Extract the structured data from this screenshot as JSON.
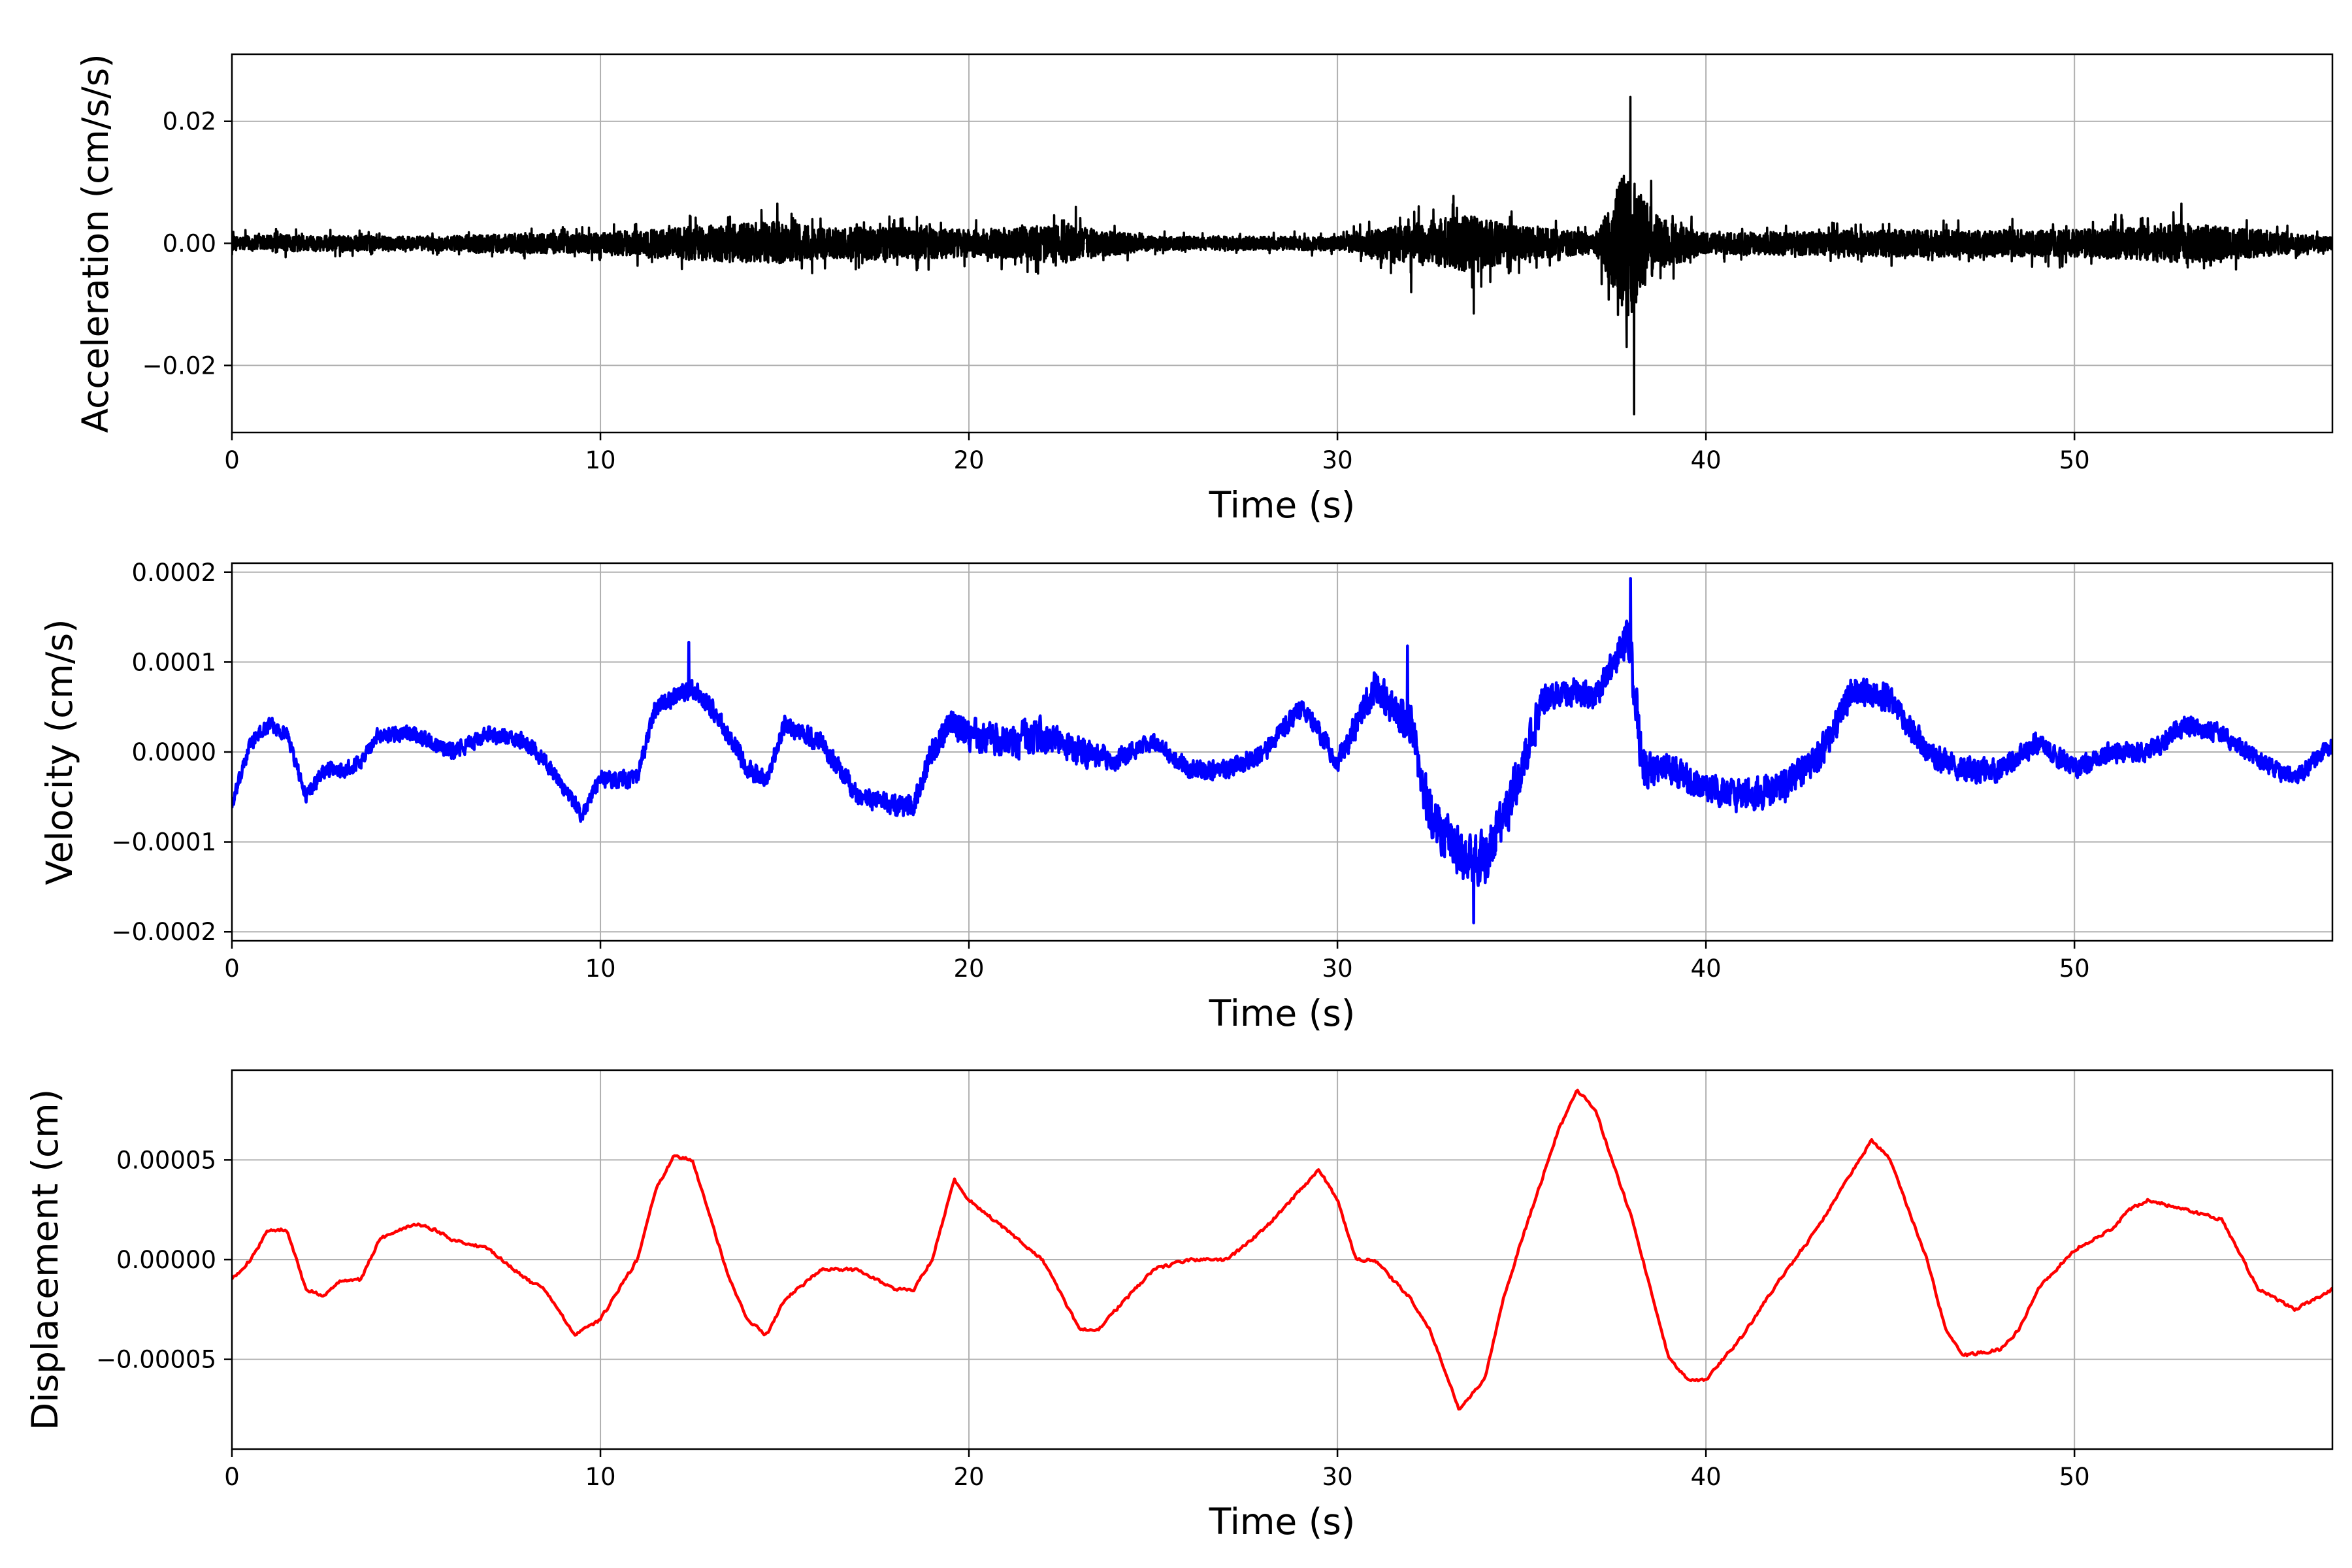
{
  "chart_data": [
    {
      "type": "line",
      "xlabel": "Time (s)",
      "ylabel": "Acceleration (cm/s/s)",
      "xlim": [
        0,
        57
      ],
      "ylim": [
        -0.031,
        0.031
      ],
      "xticks": [
        0,
        10,
        20,
        30,
        40,
        50
      ],
      "xtick_labels": [
        "0",
        "10",
        "20",
        "30",
        "40",
        "50"
      ],
      "yticks": [
        -0.02,
        0.0,
        0.02
      ],
      "ytick_labels": [
        "−0.02",
        "0.00",
        "0.02"
      ],
      "grid": true,
      "color": "#000000",
      "series": [
        {
          "envelope": [
            [
              0,
              0.002
            ],
            [
              1,
              0.0025
            ],
            [
              5,
              0.002
            ],
            [
              8,
              0.003
            ],
            [
              10,
              0.003
            ],
            [
              11,
              0.004
            ],
            [
              12.5,
              0.005
            ],
            [
              14.8,
              0.0065
            ],
            [
              16,
              0.0045
            ],
            [
              18,
              0.005
            ],
            [
              20,
              0.004
            ],
            [
              22.5,
              0.0055
            ],
            [
              25,
              0.002
            ],
            [
              28,
              0.002
            ],
            [
              30,
              0.002
            ],
            [
              32,
              0.006
            ],
            [
              33.5,
              0.0085
            ],
            [
              35,
              0.005
            ],
            [
              37,
              0.003
            ],
            [
              37.9,
              0.024
            ],
            [
              38.2,
              0.015
            ],
            [
              38.7,
              0.008
            ],
            [
              40,
              0.003
            ],
            [
              45,
              0.004
            ],
            [
              50,
              0.004
            ],
            [
              53,
              0.006
            ],
            [
              57,
              0.002
            ]
          ],
          "spikes": [
            [
              37.95,
              0.024
            ],
            [
              38.05,
              -0.028
            ],
            [
              37.85,
              -0.017
            ],
            [
              33.7,
              -0.0115
            ],
            [
              32,
              -0.008
            ],
            [
              14.8,
              0.0065
            ],
            [
              22.9,
              0.006
            ],
            [
              52.9,
              0.0065
            ]
          ]
        }
      ]
    },
    {
      "type": "line",
      "xlabel": "Time (s)",
      "ylabel": "Velocity (cm/s)",
      "xlim": [
        0,
        57
      ],
      "ylim": [
        -0.00021,
        0.00021
      ],
      "xticks": [
        0,
        10,
        20,
        30,
        40,
        50
      ],
      "xtick_labels": [
        "0",
        "10",
        "20",
        "30",
        "40",
        "50"
      ],
      "yticks": [
        -0.0002,
        -0.0001,
        0.0,
        0.0001,
        0.0002
      ],
      "ytick_labels": [
        "−0.0002",
        "−0.0001",
        "0.0000",
        "0.0001",
        "0.0002"
      ],
      "grid": true,
      "color": "#0000ff",
      "series": [
        {
          "x": [
            0,
            0.5,
            1,
            1.5,
            2,
            2.5,
            3,
            3.5,
            4,
            5,
            6,
            7,
            8,
            8.5,
            9.5,
            10,
            11,
            11.5,
            12.5,
            13,
            14,
            14.5,
            15,
            16,
            17,
            18,
            18.5,
            19,
            19.5,
            20,
            21,
            22,
            23,
            24,
            25,
            26,
            27,
            28,
            29,
            30,
            31,
            32,
            32.5,
            33.5,
            34,
            35,
            35.5,
            36,
            37,
            37.9,
            38.3,
            39,
            40,
            41,
            42,
            43,
            44,
            45,
            46,
            47,
            48,
            49,
            50,
            51,
            52,
            53,
            54,
            55,
            56,
            57
          ],
          "y": [
            -6e-05,
            1e-05,
            3e-05,
            2e-05,
            -5e-05,
            -2e-05,
            -2e-05,
            -1e-05,
            2e-05,
            2e-05,
            0,
            2e-05,
            1e-05,
            -1e-05,
            -7e-05,
            -3e-05,
            -3e-05,
            5e-05,
            7e-05,
            5e-05,
            -2e-05,
            -3e-05,
            3e-05,
            1e-05,
            -5e-05,
            -6e-05,
            -6e-05,
            0,
            3e-05,
            2e-05,
            1e-05,
            2e-05,
            0,
            -1e-05,
            1e-05,
            -2e-05,
            -2e-05,
            0,
            5e-05,
            -1e-05,
            7e-05,
            3e-05,
            -7e-05,
            -0.00012,
            -0.00012,
            -2e-05,
            5e-05,
            7e-05,
            6e-05,
            0.00013,
            -2e-05,
            -2e-05,
            -4e-05,
            -5e-05,
            -4e-05,
            -1e-05,
            7e-05,
            6e-05,
            0,
            -2e-05,
            -2e-05,
            1e-05,
            -2e-05,
            0,
            0,
            3e-05,
            2e-05,
            -1e-05,
            -3e-05,
            1e-05
          ],
          "noise": [
            [
              0,
              1e-05
            ],
            [
              10,
              1.2e-05
            ],
            [
              18,
              1.5e-05
            ],
            [
              20,
              2.2e-05
            ],
            [
              22,
              2.5e-05
            ],
            [
              25,
              1.2e-05
            ],
            [
              30,
              1.5e-05
            ],
            [
              32,
              3e-05
            ],
            [
              34,
              4e-05
            ],
            [
              36,
              2e-05
            ],
            [
              37.7,
              2e-05
            ],
            [
              38,
              4e-05
            ],
            [
              38.5,
              2.5e-05
            ],
            [
              40,
              2e-05
            ],
            [
              41,
              2.5e-05
            ],
            [
              45,
              2e-05
            ],
            [
              50,
              1.5e-05
            ],
            [
              57,
              1.2e-05
            ]
          ],
          "spikes": [
            [
              37.95,
              0.000193
            ],
            [
              33.7,
              -0.00019
            ],
            [
              12.4,
              0.000122
            ],
            [
              31.9,
              0.000118
            ]
          ]
        }
      ]
    },
    {
      "type": "line",
      "xlabel": "Time (s)",
      "ylabel": "Displacement (cm)",
      "xlim": [
        0,
        57
      ],
      "ylim": [
        -9.5e-05,
        9.5e-05
      ],
      "xticks": [
        0,
        10,
        20,
        30,
        40,
        50
      ],
      "xtick_labels": [
        "0",
        "10",
        "20",
        "30",
        "40",
        "50"
      ],
      "yticks": [
        -5e-05,
        0,
        5e-05
      ],
      "ytick_labels": [
        "−0.00005",
        "0.00000",
        "0.00005"
      ],
      "grid": true,
      "color": "#ff0000",
      "series": [
        {
          "x": [
            0,
            0.5,
            1,
            1.5,
            2,
            2.5,
            3,
            3.5,
            4,
            4.5,
            5,
            5.5,
            6,
            7,
            8,
            8.5,
            9.3,
            10,
            11,
            11.5,
            12,
            12.5,
            13,
            13.5,
            14,
            14.5,
            15,
            16,
            16.5,
            17,
            17.5,
            18,
            18.5,
            19,
            19.6,
            20,
            21,
            22,
            23,
            23.5,
            24,
            25,
            26,
            27,
            28,
            29,
            29.5,
            30,
            30.5,
            31,
            32,
            32.5,
            33.3,
            34,
            34.5,
            35,
            36,
            36.5,
            37,
            38,
            39,
            39.5,
            40,
            41,
            42,
            43,
            44,
            44.5,
            45,
            46,
            46.5,
            47,
            48,
            48.5,
            49,
            50,
            51,
            51.5,
            52,
            53,
            54,
            55,
            56,
            57
          ],
          "y": [
            -1e-05,
            0,
            1.5e-05,
            1.5e-05,
            -1.5e-05,
            -1.8e-05,
            -1e-05,
            -1e-05,
            1e-05,
            1.5e-05,
            1.8e-05,
            1.5e-05,
            1e-05,
            5e-06,
            -1e-05,
            -1.5e-05,
            -3.8e-05,
            -3e-05,
            0,
            3.5e-05,
            5.2e-05,
            5e-05,
            2e-05,
            -1e-05,
            -3e-05,
            -3.8e-05,
            -2e-05,
            -5e-06,
            -5e-06,
            -5e-06,
            -1e-05,
            -1.5e-05,
            -1.5e-05,
            0,
            4e-05,
            3e-05,
            1.5e-05,
            0,
            -3.5e-05,
            -3.5e-05,
            -2.5e-05,
            -5e-06,
            0,
            0,
            1.5e-05,
            3.5e-05,
            4.5e-05,
            3e-05,
            0,
            0,
            -2e-05,
            -3.5e-05,
            -7.5e-05,
            -6e-05,
            -2e-05,
            1e-05,
            6.5e-05,
            8.5e-05,
            7.5e-05,
            2e-05,
            -5e-05,
            -6e-05,
            -6e-05,
            -3.8e-05,
            -1e-05,
            1.5e-05,
            4.5e-05,
            6e-05,
            5e-05,
            0,
            -3.5e-05,
            -4.8e-05,
            -4.5e-05,
            -3.5e-05,
            -1.5e-05,
            5e-06,
            1.5e-05,
            2.5e-05,
            3e-05,
            2.5e-05,
            2e-05,
            -1.5e-05,
            -2.5e-05,
            -1.5e-05
          ],
          "noise": [
            [
              0,
              1e-06
            ],
            [
              57,
              1e-06
            ]
          ]
        }
      ]
    }
  ]
}
